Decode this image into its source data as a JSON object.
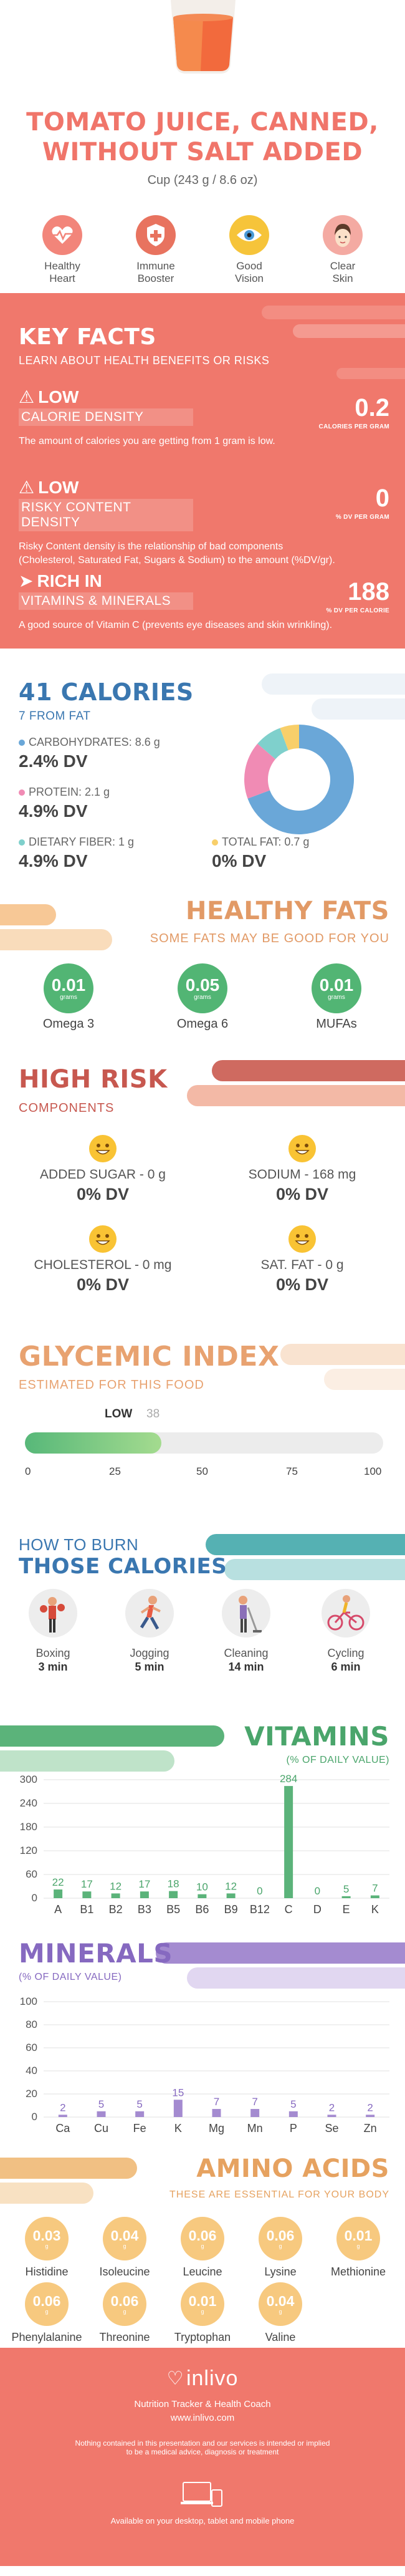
{
  "header": {
    "title_line1": "TOMATO JUICE, CANNED,",
    "title_line2": "WITHOUT SALT ADDED",
    "serving": "Cup (243 g / 8.6 oz)",
    "benefits": [
      {
        "label1": "Healthy",
        "label2": "Heart",
        "icon": "heart-icon",
        "color": "#f08a7f"
      },
      {
        "label1": "Immune",
        "label2": "Booster",
        "icon": "shield-icon",
        "color": "#e87360"
      },
      {
        "label1": "Good",
        "label2": "Vision",
        "icon": "eye-icon",
        "color": "#f6c43a"
      },
      {
        "label1": "Clear",
        "label2": "Skin",
        "icon": "face-icon",
        "color": "#f3a7a0"
      }
    ]
  },
  "key_facts": {
    "title": "KEY FACTS",
    "subtitle": "LEARN ABOUT HEALTH BENEFITS OR RISKS",
    "items": [
      {
        "level": "LOW",
        "label": "CALORIE DENSITY",
        "value": "0.2",
        "unit": "CALORIES PER GRAM",
        "desc": "The amount of calories you are getting from 1 gram is low.",
        "desc2": ""
      },
      {
        "level": "LOW",
        "label": "RISKY CONTENT DENSITY",
        "value": "0",
        "unit": "% DV PER GRAM",
        "desc": "Risky Content density is the relationship of bad components",
        "desc2": "(Cholesterol, Saturated Fat, Sugars & Sodium) to the amount (%DV/gr)."
      },
      {
        "level": "RICH  IN",
        "label": "VITAMINS & MINERALS",
        "value": "188",
        "unit": "% DV PER CALORIE",
        "desc": "A good source of Vitamin C (prevents eye diseases and skin wrinkling).",
        "desc2": ""
      }
    ]
  },
  "calories": {
    "title": "41 CALORIES",
    "subtitle": "7 FROM FAT",
    "carbs": {
      "label": "CARBOHYDRATES: 8.6 g",
      "dv": "2.4% DV",
      "color": "#6aa7d8"
    },
    "protein": {
      "label": "PROTEIN: 2.1 g",
      "dv": "4.9% DV",
      "color": "#f08bb4"
    },
    "fiber": {
      "label": "DIETARY FIBER: 1 g",
      "dv": "4.9% DV",
      "color": "#7fd0cc"
    },
    "fat": {
      "label": "TOTAL FAT: 0.7 g",
      "dv": "0% DV",
      "color": "#f8cf6a"
    },
    "donut": [
      {
        "name": "carbohydrates",
        "value": 8.6,
        "color": "#6aa7d8"
      },
      {
        "name": "protein",
        "value": 2.1,
        "color": "#f08bb4"
      },
      {
        "name": "fiber",
        "value": 1,
        "color": "#7fd0cc"
      },
      {
        "name": "fat",
        "value": 0.7,
        "color": "#f8cf6a"
      }
    ]
  },
  "fats": {
    "title": "HEALTHY FATS",
    "subtitle": "SOME FATS MAY BE GOOD FOR YOU",
    "unit": "grams",
    "items": [
      {
        "name": "Omega 3",
        "value": "0.01"
      },
      {
        "name": "Omega 6",
        "value": "0.05"
      },
      {
        "name": "MUFAs",
        "value": "0.01"
      }
    ]
  },
  "risk": {
    "title": "HIGH RISK",
    "subtitle": "COMPONENTS",
    "items": [
      {
        "label": "ADDED SUGAR - 0 g",
        "dv": "0% DV"
      },
      {
        "label": "SODIUM - 168 mg",
        "dv": "0% DV"
      },
      {
        "label": "CHOLESTEROL - 0 mg",
        "dv": "0% DV"
      },
      {
        "label": "SAT. FAT - 0 g",
        "dv": "0% DV"
      }
    ]
  },
  "glycemic": {
    "title": "GLYCEMIC INDEX",
    "subtitle": "ESTIMATED FOR THIS FOOD",
    "level": "LOW",
    "value": 38,
    "value_label": "38",
    "ticks": [
      "0",
      "25",
      "50",
      "75",
      "100"
    ]
  },
  "burn": {
    "title1": "HOW TO BURN",
    "title2": "THOSE CALORIES",
    "items": [
      {
        "name": "Boxing",
        "time": "3 min",
        "icon": "boxing-icon"
      },
      {
        "name": "Jogging",
        "time": "5 min",
        "icon": "jogging-icon"
      },
      {
        "name": "Cleaning",
        "time": "14 min",
        "icon": "cleaning-icon"
      },
      {
        "name": "Cycling",
        "time": "6 min",
        "icon": "cycling-icon"
      }
    ]
  },
  "chart_data": [
    {
      "type": "bar",
      "title": "VITAMINS",
      "subtitle": "(% OF DAILY VALUE)",
      "categories": [
        "A",
        "B1",
        "B2",
        "B3",
        "B5",
        "B6",
        "B9",
        "B12",
        "C",
        "D",
        "E",
        "K"
      ],
      "values": [
        22,
        17,
        12,
        17,
        18,
        10,
        12,
        0,
        284,
        0,
        5,
        7
      ],
      "yticks": [
        "0",
        "60",
        "120",
        "180",
        "240",
        "300"
      ],
      "ylim": [
        0,
        300
      ],
      "color": "#5bb37a",
      "highlight_color": "#5bb37a"
    },
    {
      "type": "bar",
      "title": "MINERALS",
      "subtitle": "(% OF DAILY VALUE)",
      "categories": [
        "Ca",
        "Cu",
        "Fe",
        "K",
        "Mg",
        "Mn",
        "P",
        "Se",
        "Zn"
      ],
      "values": [
        2,
        5,
        5,
        15,
        7,
        7,
        5,
        2,
        2
      ],
      "yticks": [
        "0",
        "20",
        "40",
        "60",
        "80",
        "100"
      ],
      "ylim": [
        0,
        100
      ],
      "color": "#a48bd0",
      "highlight_color": "#a48bd0"
    }
  ],
  "amino": {
    "title": "AMINO ACIDS",
    "subtitle": "THESE ARE ESSENTIAL FOR YOUR BODY",
    "unit": "g",
    "items": [
      {
        "name": "Histidine",
        "value": "0.03"
      },
      {
        "name": "Isoleucine",
        "value": "0.04"
      },
      {
        "name": "Leucine",
        "value": "0.06"
      },
      {
        "name": "Lysine",
        "value": "0.06"
      },
      {
        "name": "Methionine",
        "value": "0.01"
      },
      {
        "name": "Phenylalanine",
        "value": "0.06"
      },
      {
        "name": "Threonine",
        "value": "0.06"
      },
      {
        "name": "Tryptophan",
        "value": "0.01"
      },
      {
        "name": "Valine",
        "value": "0.04"
      }
    ]
  },
  "footer": {
    "brand": "inlivo",
    "tagline": "Nutrition Tracker & Health Coach",
    "url": "www.inlivo.com",
    "disclaimer1": "Nothing contained in this presentation and our services is intended or implied",
    "disclaimer2": "to be a medical advice, diagnosis or treatment",
    "available": "Available on your desktop, tablet and mobile phone"
  }
}
